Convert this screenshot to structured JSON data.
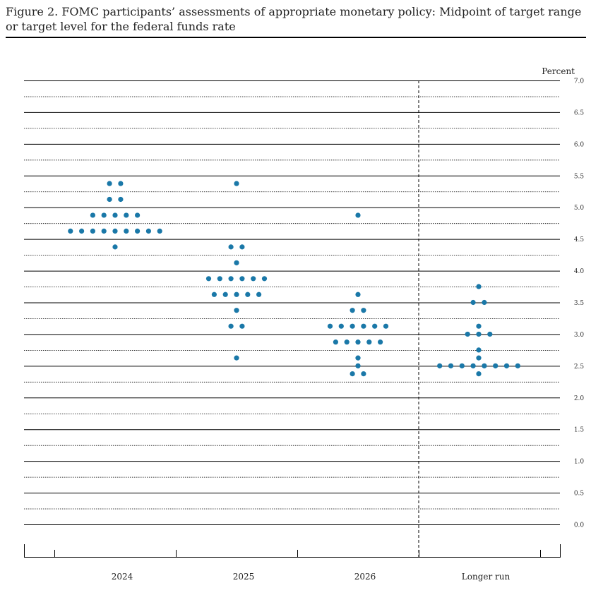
{
  "caption": "Figure 2.  FOMC participants’ assessments of appropriate monetary policy: Midpoint of target range or target level for the federal funds rate",
  "chart_data": {
    "type": "scatter",
    "ylabel": "Percent",
    "ylim": [
      0,
      7.0
    ],
    "yticks": [
      "7.0",
      "6.5",
      "6.0",
      "5.5",
      "5.0",
      "4.5",
      "4.0",
      "3.5",
      "3.0",
      "2.5",
      "2.0",
      "1.5",
      "1.0",
      "0.5",
      "0.0"
    ],
    "grid": "solid at whole and half percent, dotted at quarter percent",
    "dot_color": "#1a78a8",
    "categories": [
      {
        "label": "2024",
        "dots": [
          {
            "value": 5.375,
            "count": 2
          },
          {
            "value": 5.125,
            "count": 2
          },
          {
            "value": 4.875,
            "count": 5
          },
          {
            "value": 4.625,
            "count": 9
          },
          {
            "value": 4.375,
            "count": 1
          }
        ]
      },
      {
        "label": "2025",
        "dots": [
          {
            "value": 5.375,
            "count": 1
          },
          {
            "value": 4.375,
            "count": 2
          },
          {
            "value": 4.125,
            "count": 1
          },
          {
            "value": 3.875,
            "count": 6
          },
          {
            "value": 3.625,
            "count": 5
          },
          {
            "value": 3.375,
            "count": 1
          },
          {
            "value": 3.125,
            "count": 2
          },
          {
            "value": 2.625,
            "count": 1
          }
        ]
      },
      {
        "label": "2026",
        "dots": [
          {
            "value": 4.875,
            "count": 1
          },
          {
            "value": 3.625,
            "count": 1
          },
          {
            "value": 3.375,
            "count": 2
          },
          {
            "value": 3.125,
            "count": 6
          },
          {
            "value": 2.875,
            "count": 5
          },
          {
            "value": 2.625,
            "count": 1
          },
          {
            "value": 2.5,
            "count": 1
          },
          {
            "value": 2.375,
            "count": 2
          }
        ]
      },
      {
        "label": "Longer run",
        "dots": [
          {
            "value": 3.75,
            "count": 1
          },
          {
            "value": 3.5,
            "count": 2
          },
          {
            "value": 3.125,
            "count": 1
          },
          {
            "value": 3.0,
            "count": 3
          },
          {
            "value": 2.75,
            "count": 1
          },
          {
            "value": 2.625,
            "count": 1
          },
          {
            "value": 2.5,
            "count": 8
          },
          {
            "value": 2.375,
            "count": 1
          }
        ]
      }
    ]
  }
}
